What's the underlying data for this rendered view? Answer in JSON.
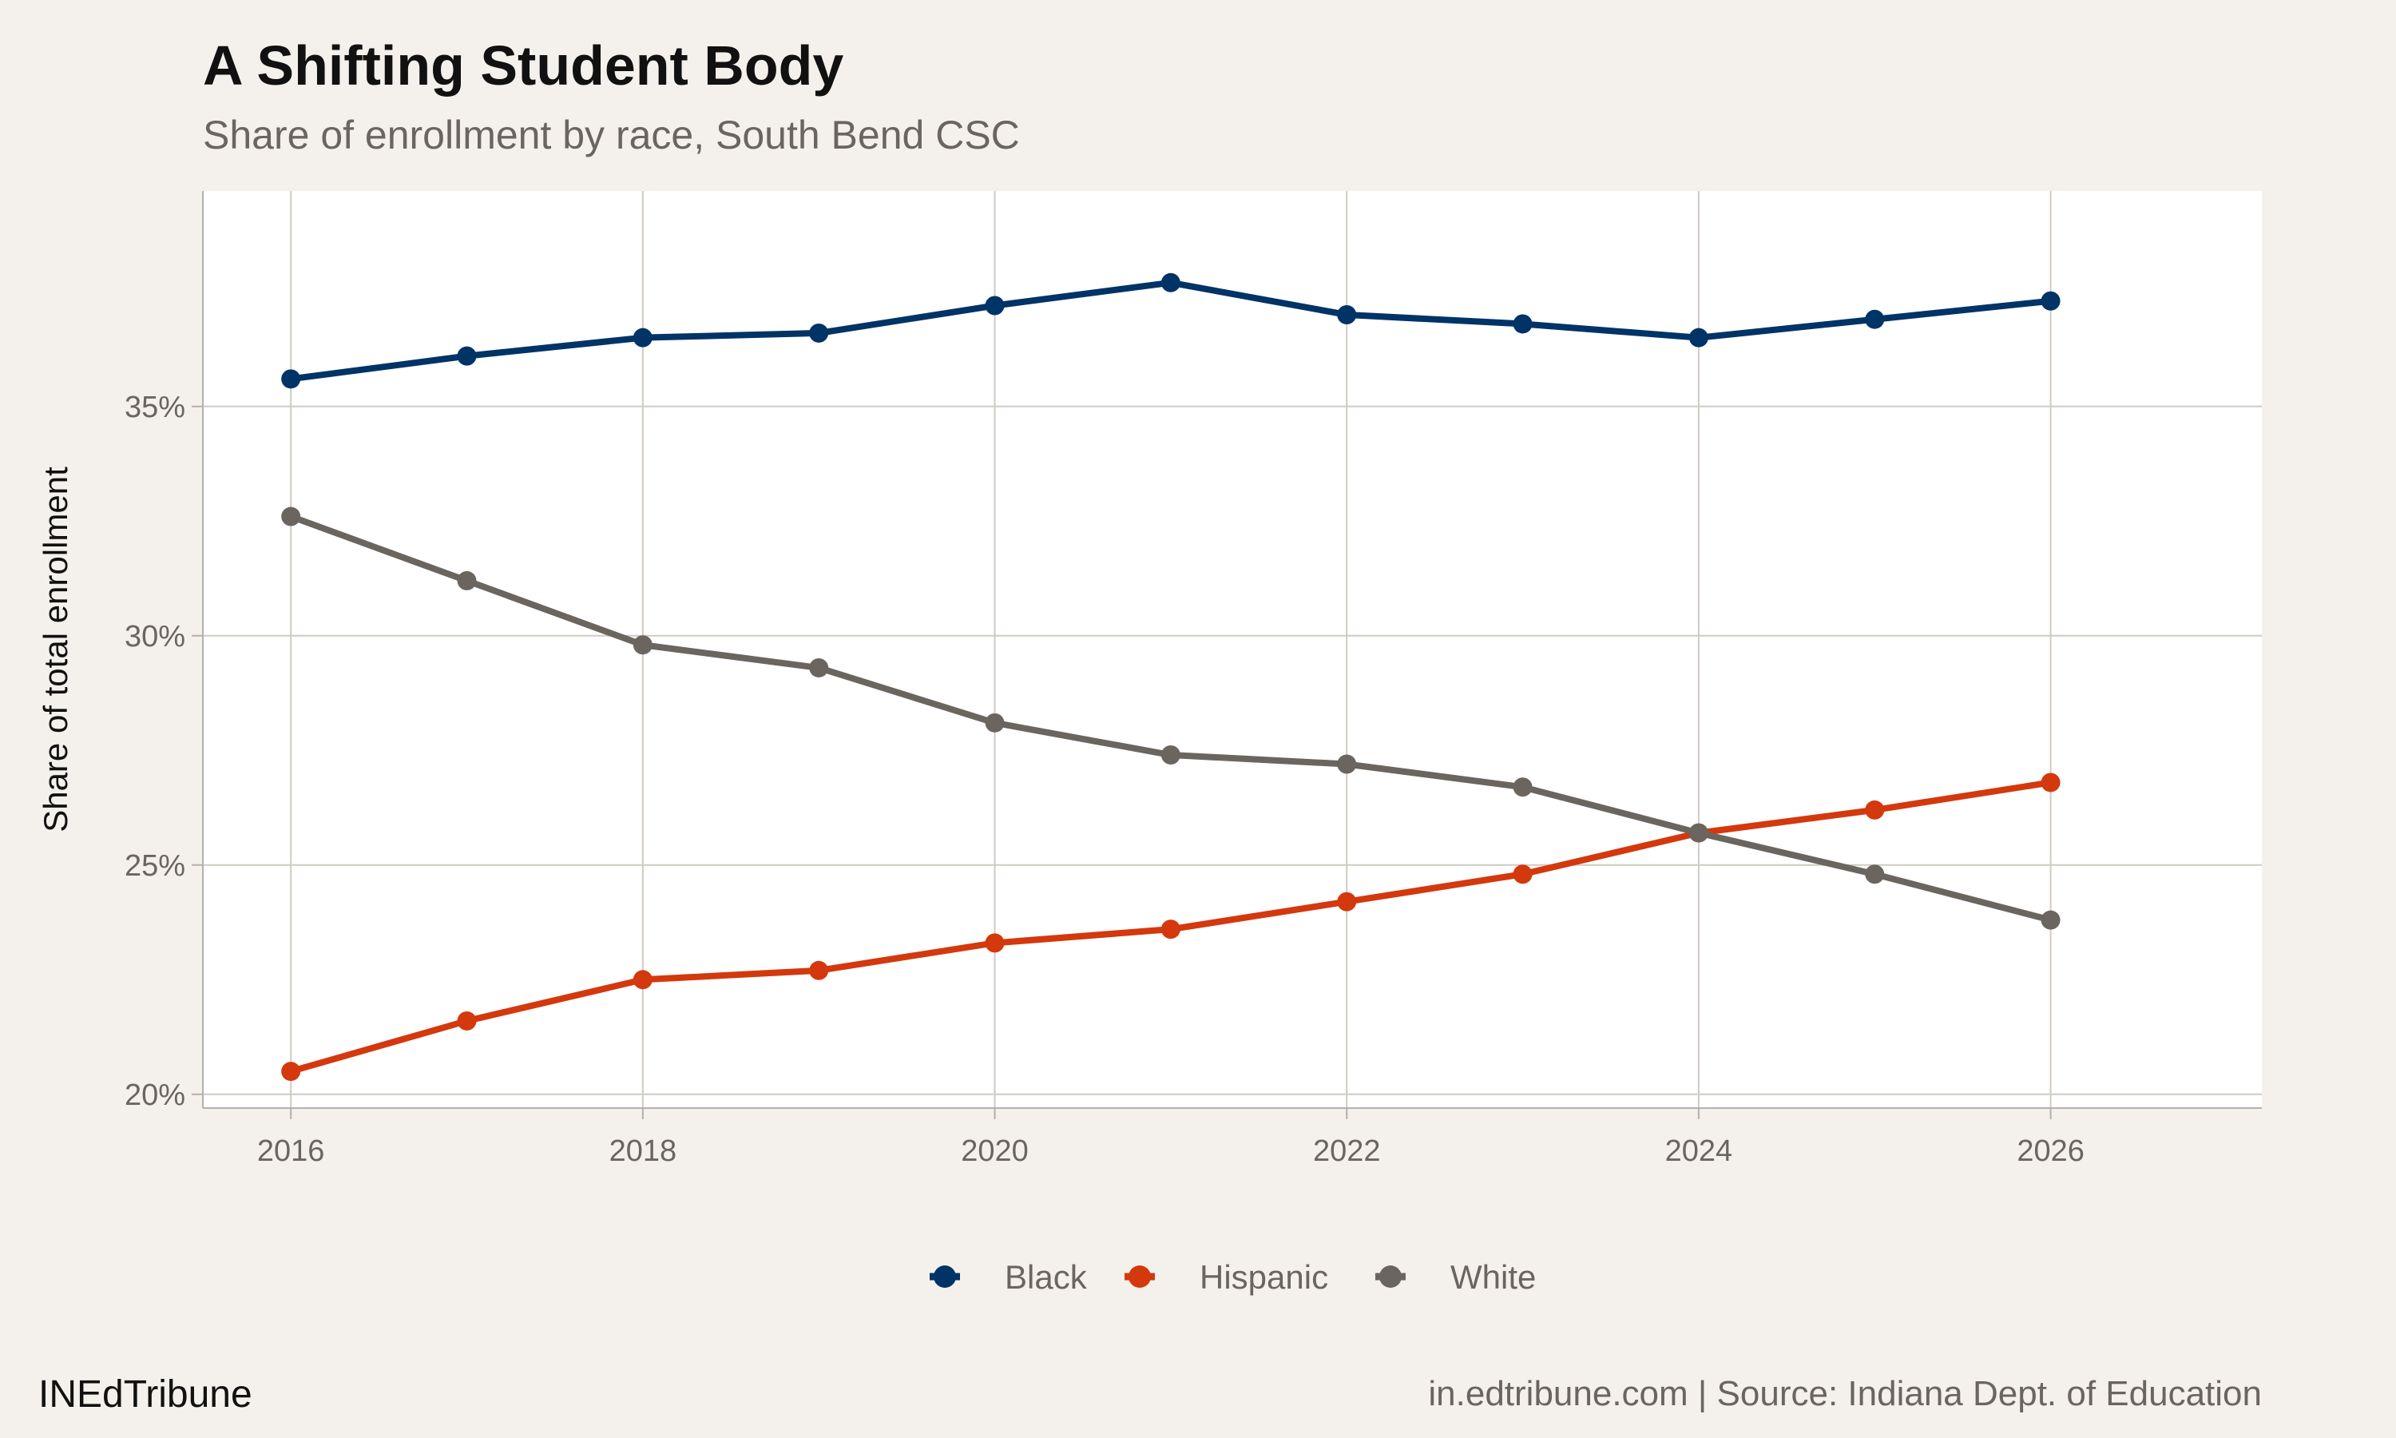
{
  "title": "A Shifting Student Body",
  "subtitle": "Share of enrollment by race, South Bend CSC",
  "footer": {
    "left": "INEdTribune",
    "right": "in.edtribune.com | Source: Indiana Dept. of Education"
  },
  "chart_data": {
    "type": "line",
    "title": "A Shifting Student Body",
    "subtitle": "Share of enrollment by race, South Bend CSC",
    "xlabel": "",
    "ylabel": "Share of total enrollment",
    "x": [
      2016,
      2017,
      2018,
      2019,
      2020,
      2021,
      2022,
      2023,
      2024,
      2025,
      2026
    ],
    "xlim": [
      2015.5,
      2027.2
    ],
    "ylim": [
      19.7,
      39.7
    ],
    "xticks": [
      2016,
      2018,
      2020,
      2022,
      2024,
      2026
    ],
    "xtick_labels": [
      "2016",
      "2018",
      "2020",
      "2022",
      "2024",
      "2026"
    ],
    "yticks": [
      20,
      25,
      30,
      35
    ],
    "ytick_labels": [
      "20%",
      "25%",
      "30%",
      "35%"
    ],
    "grid": true,
    "legend_position": "bottom",
    "series": [
      {
        "name": "Black",
        "color": "#003366",
        "values": [
          35.6,
          36.1,
          36.5,
          36.6,
          37.2,
          37.7,
          37.0,
          36.8,
          36.5,
          36.9,
          37.3
        ]
      },
      {
        "name": "Hispanic",
        "color": "#d4380d",
        "values": [
          20.5,
          21.6,
          22.5,
          22.7,
          23.3,
          23.6,
          24.2,
          24.8,
          25.7,
          26.2,
          26.8
        ]
      },
      {
        "name": "White",
        "color": "#6b6560",
        "values": [
          32.6,
          31.2,
          29.8,
          29.3,
          28.1,
          27.4,
          27.2,
          26.7,
          25.7,
          24.8,
          23.8
        ]
      }
    ]
  }
}
